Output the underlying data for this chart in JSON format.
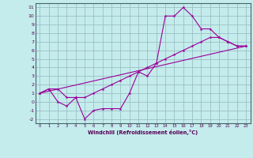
{
  "xlabel": "Windchill (Refroidissement éolien,°C)",
  "bg_color": "#c5eced",
  "grid_color": "#9bbfc4",
  "line_color": "#990099",
  "xlim": [
    -0.5,
    23.5
  ],
  "ylim": [
    -2.5,
    11.5
  ],
  "xticks": [
    0,
    1,
    2,
    3,
    4,
    5,
    6,
    7,
    8,
    9,
    10,
    11,
    12,
    13,
    14,
    15,
    16,
    17,
    18,
    19,
    20,
    21,
    22,
    23
  ],
  "yticks": [
    -2,
    -1,
    0,
    1,
    2,
    3,
    4,
    5,
    6,
    7,
    8,
    9,
    10,
    11
  ],
  "line1_x": [
    0,
    1,
    2,
    3,
    4,
    5,
    6,
    7,
    8,
    9,
    10,
    11,
    12,
    13,
    14,
    15,
    16,
    17,
    18,
    19,
    20,
    21,
    22,
    23
  ],
  "line1_y": [
    1.0,
    1.5,
    0.0,
    -0.5,
    0.5,
    -2.0,
    -1.0,
    -0.8,
    -0.8,
    -0.8,
    1.0,
    3.5,
    3.0,
    4.5,
    10.0,
    10.0,
    11.0,
    10.0,
    8.5,
    8.5,
    7.5,
    7.0,
    6.5,
    6.5
  ],
  "line2_x": [
    0,
    1,
    2,
    3,
    4,
    5,
    6,
    7,
    8,
    9,
    10,
    11,
    12,
    13,
    14,
    15,
    16,
    17,
    18,
    19,
    20,
    21,
    22,
    23
  ],
  "line2_y": [
    1.0,
    1.5,
    1.5,
    0.5,
    0.5,
    0.5,
    1.0,
    1.5,
    2.0,
    2.5,
    3.0,
    3.5,
    4.0,
    4.5,
    5.0,
    5.5,
    6.0,
    6.5,
    7.0,
    7.5,
    7.5,
    7.0,
    6.5,
    6.5
  ],
  "line3_x": [
    0,
    23
  ],
  "line3_y": [
    1.0,
    6.5
  ]
}
